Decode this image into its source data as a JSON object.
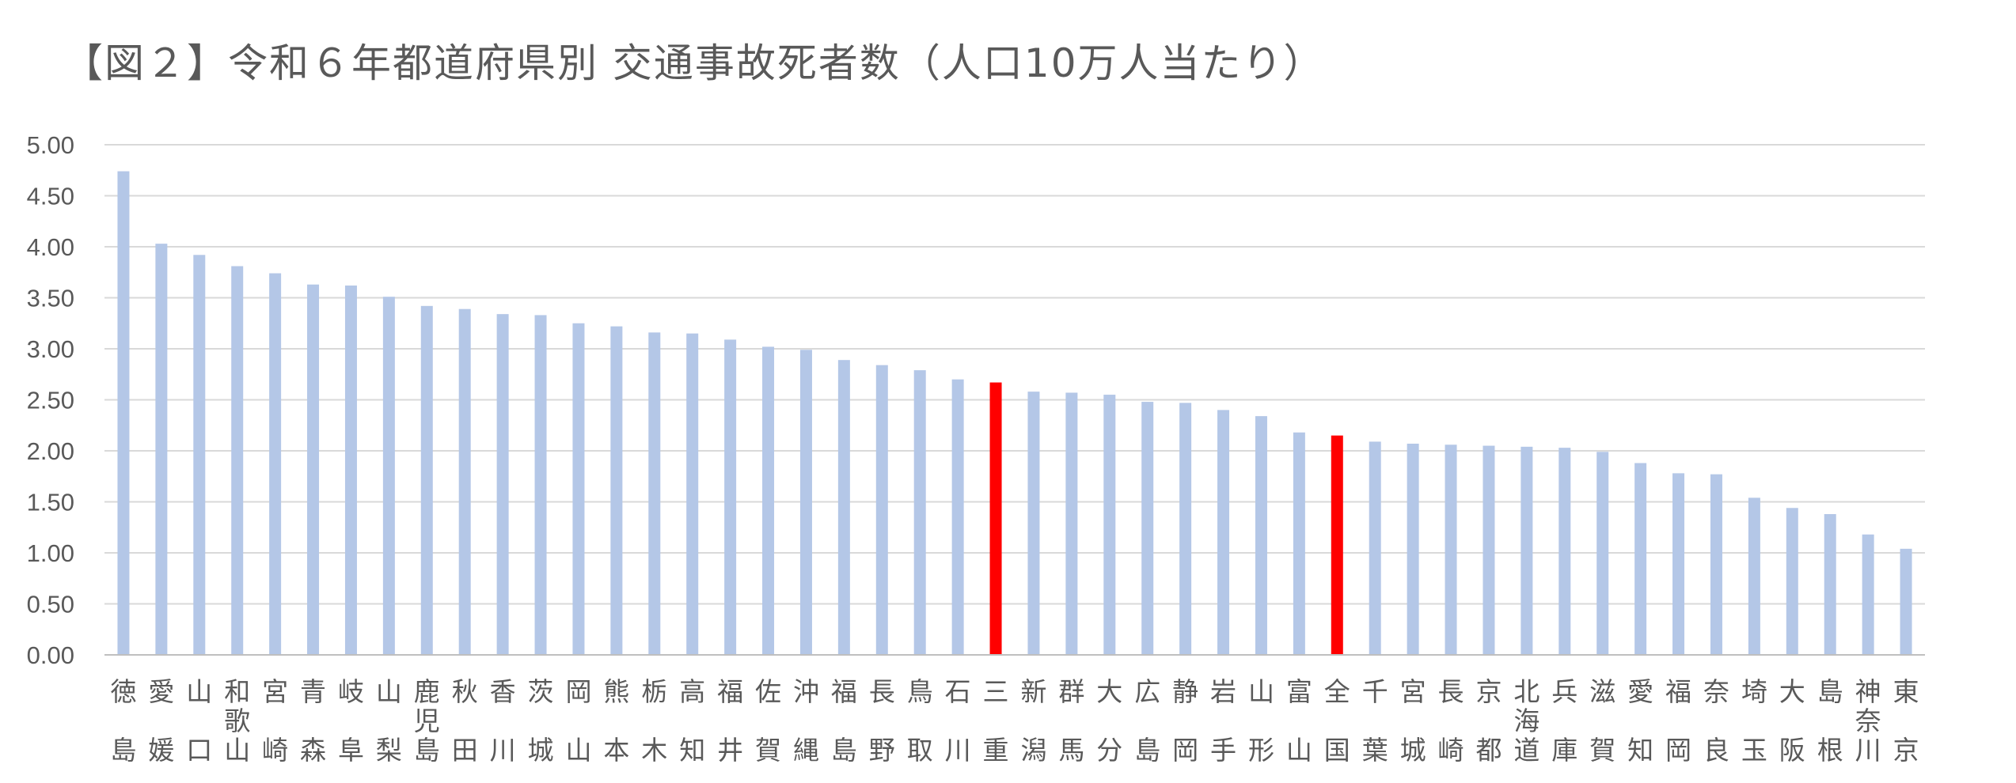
{
  "chart_data": {
    "type": "bar",
    "title": "【図２】令和６年都道府県別 交通事故死者数（人口10万人当たり）",
    "xlabel": "",
    "ylabel": "",
    "ylim": [
      0,
      5
    ],
    "yticks": [
      "0.00",
      "0.50",
      "1.00",
      "1.50",
      "2.00",
      "2.50",
      "3.00",
      "3.50",
      "4.00",
      "4.50",
      "5.00"
    ],
    "grid": true,
    "legend": "none",
    "colors": {
      "bar": "#b4c7e7",
      "highlight": "#ff0000",
      "grid": "#d9d9d9",
      "axis": "#bfbfbf",
      "text": "#595959"
    },
    "highlight": [
      "三重",
      "全国"
    ],
    "categories": [
      "徳島",
      "愛媛",
      "山口",
      "和歌山",
      "宮崎",
      "青森",
      "岐阜",
      "山梨",
      "鹿児島",
      "秋田",
      "香川",
      "茨城",
      "岡山",
      "熊本",
      "栃木",
      "高知",
      "福井",
      "佐賀",
      "沖縄",
      "福島",
      "長野",
      "鳥取",
      "石川",
      "三重",
      "新潟",
      "群馬",
      "大分",
      "広島",
      "静岡",
      "岩手",
      "山形",
      "富山",
      "全国",
      "千葉",
      "宮城",
      "長崎",
      "京都",
      "北海道",
      "兵庫",
      "滋賀",
      "愛知",
      "福岡",
      "奈良",
      "埼玉",
      "大阪",
      "島根",
      "神奈川",
      "東京"
    ],
    "values": [
      4.74,
      4.03,
      3.92,
      3.81,
      3.74,
      3.63,
      3.62,
      3.51,
      3.42,
      3.39,
      3.34,
      3.33,
      3.25,
      3.22,
      3.16,
      3.15,
      3.09,
      3.02,
      2.99,
      2.89,
      2.84,
      2.79,
      2.7,
      2.67,
      2.58,
      2.57,
      2.55,
      2.48,
      2.47,
      2.4,
      2.34,
      2.18,
      2.15,
      2.09,
      2.07,
      2.06,
      2.05,
      2.04,
      2.03,
      1.99,
      1.88,
      1.78,
      1.77,
      1.54,
      1.44,
      1.38,
      1.18,
      1.04
    ]
  }
}
